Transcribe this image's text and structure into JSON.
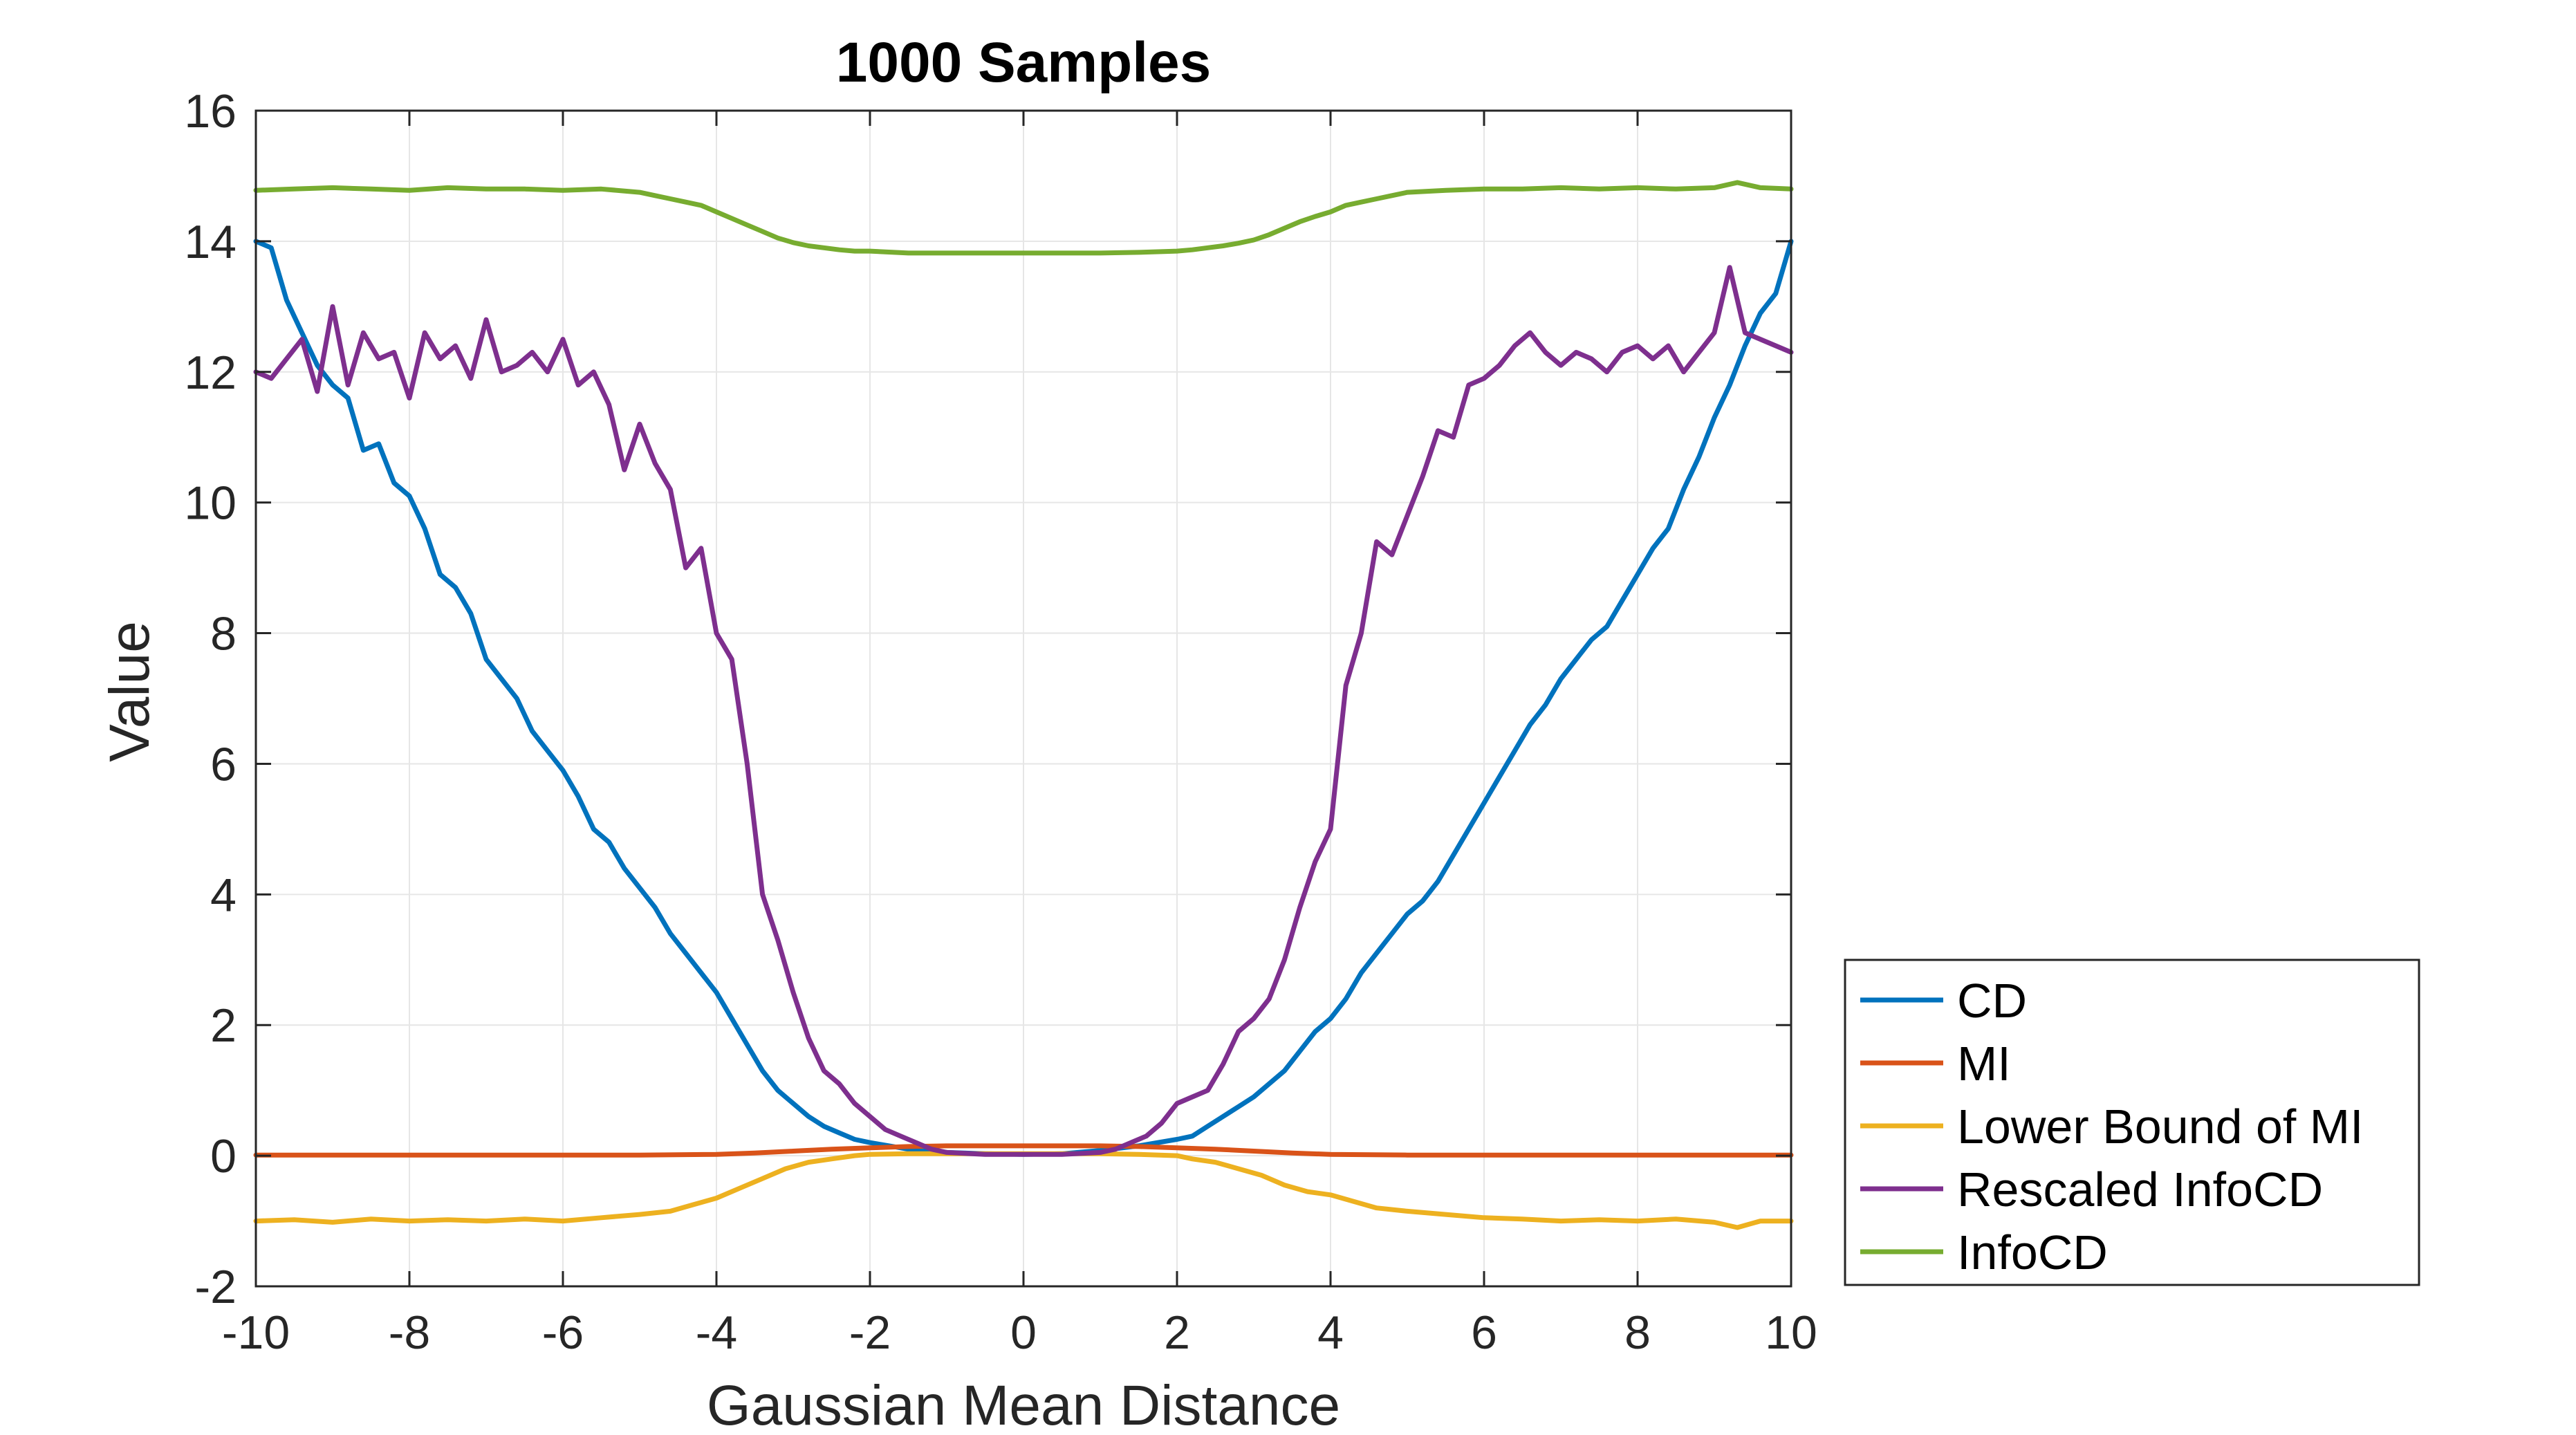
{
  "chart_data": {
    "type": "line",
    "title": "1000 Samples",
    "xlabel": "Gaussian Mean Distance",
    "ylabel": "Value",
    "xlim": [
      -10,
      10
    ],
    "ylim": [
      -2,
      16
    ],
    "xticks": [
      -10,
      -8,
      -6,
      -4,
      -2,
      0,
      2,
      4,
      6,
      8,
      10
    ],
    "yticks": [
      -2,
      0,
      2,
      4,
      6,
      8,
      10,
      12,
      14,
      16
    ],
    "xtick_labels": [
      "-10",
      "-8",
      "-6",
      "-4",
      "-2",
      "0",
      "2",
      "4",
      "6",
      "8",
      "10"
    ],
    "ytick_labels": [
      "-2",
      "0",
      "2",
      "4",
      "6",
      "8",
      "10",
      "12",
      "14",
      "16"
    ],
    "grid": true,
    "legend_position": "outside-right-bottom",
    "series": [
      {
        "name": "CD",
        "color": "#0072BD",
        "x": [
          -10,
          -9.8,
          -9.6,
          -9.4,
          -9.2,
          -9,
          -8.8,
          -8.6,
          -8.4,
          -8.2,
          -8,
          -7.8,
          -7.6,
          -7.4,
          -7.2,
          -7,
          -6.8,
          -6.6,
          -6.4,
          -6.2,
          -6,
          -5.8,
          -5.6,
          -5.4,
          -5.2,
          -5,
          -4.8,
          -4.6,
          -4.4,
          -4.2,
          -4,
          -3.8,
          -3.6,
          -3.4,
          -3.2,
          -3,
          -2.8,
          -2.6,
          -2.4,
          -2.2,
          -2,
          -1.5,
          -1,
          -0.5,
          0,
          0.5,
          1,
          1.5,
          2,
          2.2,
          2.4,
          2.6,
          2.8,
          3,
          3.2,
          3.4,
          3.6,
          3.8,
          4,
          4.2,
          4.4,
          4.6,
          4.8,
          5,
          5.2,
          5.4,
          5.6,
          5.8,
          6,
          6.2,
          6.4,
          6.6,
          6.8,
          7,
          7.2,
          7.4,
          7.6,
          7.8,
          8,
          8.2,
          8.4,
          8.6,
          8.8,
          9,
          9.2,
          9.4,
          9.6,
          9.8,
          10
        ],
        "y": [
          14.0,
          13.9,
          13.1,
          12.6,
          12.1,
          11.8,
          11.6,
          10.8,
          10.9,
          10.3,
          10.1,
          9.6,
          8.9,
          8.7,
          8.3,
          7.6,
          7.3,
          7.0,
          6.5,
          6.2,
          5.9,
          5.5,
          5.0,
          4.8,
          4.4,
          4.1,
          3.8,
          3.4,
          3.1,
          2.8,
          2.5,
          2.1,
          1.7,
          1.3,
          1.0,
          0.8,
          0.6,
          0.45,
          0.35,
          0.25,
          0.2,
          0.1,
          0.05,
          0.03,
          0.02,
          0.03,
          0.08,
          0.15,
          0.25,
          0.3,
          0.45,
          0.6,
          0.75,
          0.9,
          1.1,
          1.3,
          1.6,
          1.9,
          2.1,
          2.4,
          2.8,
          3.1,
          3.4,
          3.7,
          3.9,
          4.2,
          4.6,
          5.0,
          5.4,
          5.8,
          6.2,
          6.6,
          6.9,
          7.3,
          7.6,
          7.9,
          8.1,
          8.5,
          8.9,
          9.3,
          9.6,
          10.2,
          10.7,
          11.3,
          11.8,
          12.4,
          12.9,
          13.2,
          14.0
        ]
      },
      {
        "name": "MI",
        "color": "#D95319",
        "x": [
          -10,
          -8,
          -6,
          -5,
          -4,
          -3.5,
          -3,
          -2.5,
          -2,
          -1.5,
          -1,
          -0.5,
          0,
          0.5,
          1,
          1.5,
          2,
          2.5,
          3,
          3.5,
          4,
          5,
          6,
          8,
          10
        ],
        "y": [
          0.01,
          0.01,
          0.01,
          0.01,
          0.02,
          0.04,
          0.07,
          0.1,
          0.12,
          0.14,
          0.15,
          0.15,
          0.15,
          0.15,
          0.15,
          0.14,
          0.12,
          0.1,
          0.07,
          0.04,
          0.02,
          0.01,
          0.01,
          0.01,
          0.01
        ]
      },
      {
        "name": "Lower Bound of MI",
        "color": "#EDB120",
        "x": [
          -10,
          -9.5,
          -9,
          -8.5,
          -8,
          -7.5,
          -7,
          -6.5,
          -6,
          -5.5,
          -5,
          -4.6,
          -4.3,
          -4,
          -3.7,
          -3.4,
          -3.1,
          -2.8,
          -2.5,
          -2.2,
          -2,
          -1.5,
          -1,
          -0.5,
          0,
          0.5,
          1,
          1.5,
          2,
          2.2,
          2.5,
          2.8,
          3.1,
          3.4,
          3.7,
          4,
          4.3,
          4.6,
          5,
          5.5,
          6,
          6.5,
          7,
          7.5,
          8,
          8.5,
          9,
          9.3,
          9.6,
          10
        ],
        "y": [
          -1.0,
          -0.98,
          -1.02,
          -0.97,
          -1.0,
          -0.98,
          -1.0,
          -0.97,
          -1.0,
          -0.95,
          -0.9,
          -0.85,
          -0.75,
          -0.65,
          -0.5,
          -0.35,
          -0.2,
          -0.1,
          -0.05,
          0.0,
          0.02,
          0.03,
          0.03,
          0.03,
          0.03,
          0.03,
          0.03,
          0.02,
          0.0,
          -0.05,
          -0.1,
          -0.2,
          -0.3,
          -0.45,
          -0.55,
          -0.6,
          -0.7,
          -0.8,
          -0.85,
          -0.9,
          -0.95,
          -0.97,
          -1.0,
          -0.98,
          -1.0,
          -0.97,
          -1.02,
          -1.1,
          -1.0,
          -1.0
        ]
      },
      {
        "name": "Rescaled InfoCD",
        "color": "#7E2F8E",
        "x": [
          -10,
          -9.8,
          -9.6,
          -9.4,
          -9.2,
          -9,
          -8.8,
          -8.6,
          -8.4,
          -8.2,
          -8,
          -7.8,
          -7.6,
          -7.4,
          -7.2,
          -7,
          -6.8,
          -6.6,
          -6.4,
          -6.2,
          -6,
          -5.8,
          -5.6,
          -5.4,
          -5.2,
          -5,
          -4.8,
          -4.6,
          -4.4,
          -4.2,
          -4,
          -3.8,
          -3.6,
          -3.4,
          -3.2,
          -3,
          -2.8,
          -2.6,
          -2.4,
          -2.2,
          -2,
          -1.8,
          -1.6,
          -1.4,
          -1.2,
          -1,
          -0.5,
          0,
          0.5,
          1,
          1.2,
          1.4,
          1.6,
          1.8,
          2,
          2.2,
          2.4,
          2.6,
          2.8,
          3,
          3.2,
          3.4,
          3.6,
          3.8,
          4,
          4.2,
          4.4,
          4.6,
          4.8,
          5,
          5.2,
          5.4,
          5.6,
          5.8,
          6,
          6.2,
          6.4,
          6.6,
          6.8,
          7,
          7.2,
          7.4,
          7.6,
          7.8,
          8,
          8.2,
          8.4,
          8.6,
          8.8,
          9,
          9.2,
          9.4,
          9.6,
          9.8,
          10
        ],
        "y": [
          12.0,
          11.9,
          12.2,
          12.5,
          11.7,
          13.0,
          11.8,
          12.6,
          12.2,
          12.3,
          11.6,
          12.6,
          12.2,
          12.4,
          11.9,
          12.8,
          12.0,
          12.1,
          12.3,
          12.0,
          12.5,
          11.8,
          12.0,
          11.5,
          10.5,
          11.2,
          10.6,
          10.2,
          9.0,
          9.3,
          8.0,
          7.6,
          6.0,
          4.0,
          3.3,
          2.5,
          1.8,
          1.3,
          1.1,
          0.8,
          0.6,
          0.4,
          0.3,
          0.2,
          0.1,
          0.05,
          0.02,
          0.02,
          0.02,
          0.05,
          0.1,
          0.2,
          0.3,
          0.5,
          0.8,
          0.9,
          1.0,
          1.4,
          1.9,
          2.1,
          2.4,
          3.0,
          3.8,
          4.5,
          5.0,
          7.2,
          8.0,
          9.4,
          9.2,
          9.8,
          10.4,
          11.1,
          11.0,
          11.8,
          11.9,
          12.1,
          12.4,
          12.6,
          12.3,
          12.1,
          12.3,
          12.2,
          12.0,
          12.3,
          12.4,
          12.2,
          12.4,
          12.0,
          12.3,
          12.6,
          13.6,
          12.6,
          12.5,
          12.4,
          12.3
        ]
      },
      {
        "name": "InfoCD",
        "color": "#77AC30",
        "x": [
          -10,
          -9.5,
          -9,
          -8.5,
          -8,
          -7.5,
          -7,
          -6.5,
          -6,
          -5.5,
          -5,
          -4.8,
          -4.6,
          -4.4,
          -4.2,
          -4,
          -3.8,
          -3.6,
          -3.4,
          -3.2,
          -3,
          -2.8,
          -2.6,
          -2.4,
          -2.2,
          -2,
          -1.5,
          -1,
          -0.5,
          0,
          0.5,
          1,
          1.5,
          2,
          2.2,
          2.4,
          2.6,
          2.8,
          3,
          3.2,
          3.4,
          3.6,
          3.8,
          4,
          4.2,
          4.4,
          4.6,
          4.8,
          5,
          5.5,
          6,
          6.5,
          7,
          7.5,
          8,
          8.5,
          9,
          9.3,
          9.6,
          10
        ],
        "y": [
          14.78,
          14.8,
          14.82,
          14.8,
          14.78,
          14.82,
          14.8,
          14.8,
          14.78,
          14.8,
          14.75,
          14.7,
          14.65,
          14.6,
          14.55,
          14.45,
          14.35,
          14.25,
          14.15,
          14.05,
          13.98,
          13.93,
          13.9,
          13.87,
          13.85,
          13.85,
          13.82,
          13.82,
          13.82,
          13.82,
          13.82,
          13.82,
          13.83,
          13.85,
          13.87,
          13.9,
          13.93,
          13.97,
          14.02,
          14.1,
          14.2,
          14.3,
          14.38,
          14.45,
          14.55,
          14.6,
          14.65,
          14.7,
          14.75,
          14.78,
          14.8,
          14.8,
          14.82,
          14.8,
          14.82,
          14.8,
          14.82,
          14.9,
          14.82,
          14.8
        ]
      }
    ]
  }
}
